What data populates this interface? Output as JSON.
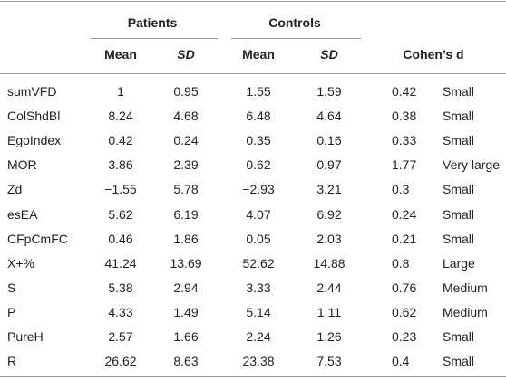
{
  "table": {
    "group_headers": [
      "Patients",
      "Controls"
    ],
    "columns": [
      "Mean",
      "SD",
      "Mean",
      "SD",
      "Cohen’s d"
    ],
    "rows": [
      [
        "sumVFD",
        "1",
        "0.95",
        "1.55",
        "1.59",
        "0.42",
        "Small"
      ],
      [
        "ColShdBl",
        "8.24",
        "4.68",
        "6.48",
        "4.64",
        "0.38",
        "Small"
      ],
      [
        "EgoIndex",
        "0.42",
        "0.24",
        "0.35",
        "0.16",
        "0.33",
        "Small"
      ],
      [
        "MOR",
        "3.86",
        "2.39",
        "0.62",
        "0.97",
        "1.77",
        "Very large"
      ],
      [
        "Zd",
        "−1.55",
        "5.78",
        "−2.93",
        "3.21",
        "0.3",
        "Small"
      ],
      [
        "esEA",
        "5.62",
        "6.19",
        "4.07",
        "6.92",
        "0.24",
        "Small"
      ],
      [
        "CFpCmFC",
        "0.46",
        "1.86",
        "0.05",
        "2.03",
        "0.21",
        "Small"
      ],
      [
        "X+%",
        "41.24",
        "13.69",
        "52.62",
        "14.88",
        "0.8",
        "Large"
      ],
      [
        "S",
        "5.38",
        "2.94",
        "3.33",
        "2.44",
        "0.76",
        "Medium"
      ],
      [
        "P",
        "4.33",
        "1.49",
        "5.14",
        "1.11",
        "0.62",
        "Medium"
      ],
      [
        "PureH",
        "2.57",
        "1.66",
        "2.24",
        "1.26",
        "0.23",
        "Small"
      ],
      [
        "R",
        "26.62",
        "8.63",
        "23.38",
        "7.53",
        "0.4",
        "Small"
      ]
    ]
  }
}
